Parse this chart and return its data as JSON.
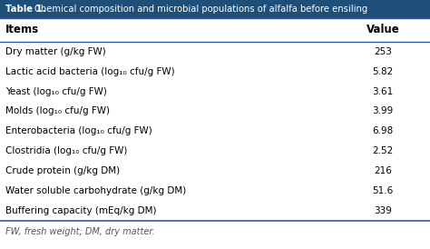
{
  "title": "Table 1. Chemical composition and microbial populations of alfalfa before ensiling",
  "title_prefix": "Table 1.",
  "col_headers": [
    "Items",
    "Value"
  ],
  "rows": [
    [
      "Dry matter (g/kg FW)",
      "253"
    ],
    [
      "Lactic acid bacteria (log₁₀ cfu/g FW)",
      "5.82"
    ],
    [
      "Yeast (log₁₀ cfu/g FW)",
      "3.61"
    ],
    [
      "Molds (log₁₀ cfu/g FW)",
      "3.99"
    ],
    [
      "Enterobacteria (log₁₀ cfu/g FW)",
      "6.98"
    ],
    [
      "Clostridia (log₁₀ cfu/g FW)",
      "2.52"
    ],
    [
      "Crude protein (g/kg DM)",
      "216"
    ],
    [
      "Water soluble carbohydrate (g/kg DM)",
      "51.6"
    ],
    [
      "Buffering capacity (mEq/kg DM)",
      "339"
    ]
  ],
  "footnote": "FW, fresh weight; DM, dry matter.",
  "title_bg": "#1f4e79",
  "title_text_color": "#ffffff",
  "header_bg": "#ffffff",
  "header_text_color": "#000000",
  "row_bg": "#ffffff",
  "row_text_color": "#000000",
  "line_color": "#2e5fa3",
  "footnote_color": "#555555",
  "font_size": 7.5,
  "header_font_size": 8.5,
  "title_font_size": 7.2
}
